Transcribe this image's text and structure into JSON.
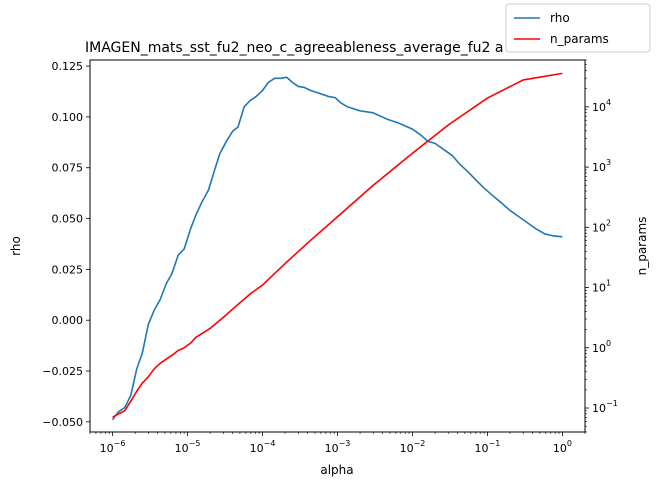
{
  "chart_data": {
    "type": "line",
    "title": "IMAGEN_mats_sst_fu2_neo_c_agreeableness_average_fu2 a",
    "xlabel": "alpha",
    "ylabel_left": "rho",
    "ylabel_right": "n_params",
    "xscale": "log",
    "xlim": [
      5e-07,
      2
    ],
    "ylim_left": [
      -0.055,
      0.128
    ],
    "ylim_right": [
      0.04,
      60000
    ],
    "yscale_right": "log",
    "x_ticks": [
      {
        "value": 1e-06,
        "base": "10",
        "exp": "−6"
      },
      {
        "value": 1e-05,
        "base": "10",
        "exp": "−5"
      },
      {
        "value": 0.0001,
        "base": "10",
        "exp": "−4"
      },
      {
        "value": 0.001,
        "base": "10",
        "exp": "−3"
      },
      {
        "value": 0.01,
        "base": "10",
        "exp": "−2"
      },
      {
        "value": 0.1,
        "base": "10",
        "exp": "−1"
      },
      {
        "value": 1,
        "base": "10",
        "exp": "0"
      }
    ],
    "y_left_ticks": [
      {
        "value": -0.05,
        "label": "−0.050"
      },
      {
        "value": -0.025,
        "label": "−0.025"
      },
      {
        "value": 0.0,
        "label": "0.000"
      },
      {
        "value": 0.025,
        "label": "0.025"
      },
      {
        "value": 0.05,
        "label": "0.050"
      },
      {
        "value": 0.075,
        "label": "0.075"
      },
      {
        "value": 0.1,
        "label": "0.100"
      },
      {
        "value": 0.125,
        "label": "0.125"
      }
    ],
    "y_right_ticks": [
      {
        "value": 0.1,
        "base": "10",
        "exp": "−1"
      },
      {
        "value": 1,
        "base": "10",
        "exp": "0"
      },
      {
        "value": 10,
        "base": "10",
        "exp": "1"
      },
      {
        "value": 100,
        "base": "10",
        "exp": "2"
      },
      {
        "value": 1000,
        "base": "10",
        "exp": "3"
      },
      {
        "value": 10000,
        "base": "10",
        "exp": "4"
      }
    ],
    "legend": {
      "placement": "top-right"
    },
    "series": [
      {
        "name": "rho",
        "axis": "left",
        "color": "#1f77b4",
        "x": [
          1e-06,
          1.2e-06,
          1.45e-06,
          1.75e-06,
          2.1e-06,
          2.5e-06,
          3e-06,
          3.6e-06,
          4.3e-06,
          5.2e-06,
          6.2e-06,
          7.5e-06,
          9e-06,
          1.1e-05,
          1.3e-05,
          1.55e-05,
          1.9e-05,
          2.3e-05,
          2.7e-05,
          3.3e-05,
          4e-05,
          4.7e-05,
          5.7e-05,
          6.8e-05,
          8.2e-05,
          0.0001,
          0.00012,
          0.000145,
          0.000175,
          0.00021,
          0.00025,
          0.0003,
          0.00036,
          0.00044,
          0.00053,
          0.00064,
          0.00077,
          0.00093,
          0.0011,
          0.00135,
          0.002,
          0.003,
          0.0045,
          0.0065,
          0.01,
          0.013,
          0.016,
          0.02,
          0.026,
          0.034,
          0.042,
          0.055,
          0.07,
          0.09,
          0.12,
          0.15,
          0.2,
          0.26,
          0.34,
          0.44,
          0.58,
          0.75,
          1.0
        ],
        "y": [
          -0.049,
          -0.045,
          -0.043,
          -0.037,
          -0.024,
          -0.016,
          -0.002,
          0.005,
          0.01,
          0.018,
          0.023,
          0.032,
          0.035,
          0.045,
          0.052,
          0.058,
          0.064,
          0.074,
          0.082,
          0.088,
          0.093,
          0.095,
          0.105,
          0.108,
          0.11,
          0.113,
          0.117,
          0.119,
          0.119,
          0.1195,
          0.117,
          0.115,
          0.1145,
          0.113,
          0.112,
          0.111,
          0.11,
          0.1095,
          0.107,
          0.105,
          0.103,
          0.102,
          0.099,
          0.097,
          0.094,
          0.091,
          0.088,
          0.087,
          0.084,
          0.081,
          0.077,
          0.073,
          0.069,
          0.065,
          0.061,
          0.058,
          0.054,
          0.051,
          0.048,
          0.045,
          0.0425,
          0.0415,
          0.041
        ]
      },
      {
        "name": "n_params",
        "axis": "right",
        "color": "#ff0000",
        "x": [
          1e-06,
          1.2e-06,
          1.45e-06,
          1.75e-06,
          2.1e-06,
          2.5e-06,
          3e-06,
          3.6e-06,
          4.3e-06,
          5.2e-06,
          6.2e-06,
          7.5e-06,
          9e-06,
          1.1e-05,
          1.3e-05,
          2e-05,
          3e-05,
          4.5e-05,
          7e-05,
          0.0001,
          0.0002,
          0.0004,
          0.001,
          0.003,
          0.01,
          0.03,
          0.1,
          0.3,
          1.0
        ],
        "y": [
          0.07,
          0.08,
          0.09,
          0.13,
          0.19,
          0.26,
          0.33,
          0.45,
          0.55,
          0.65,
          0.75,
          0.9,
          1.0,
          1.2,
          1.5,
          2.1,
          3.2,
          5.0,
          8.0,
          11.0,
          25,
          55,
          150,
          500,
          1700,
          5000,
          14000,
          28000,
          36000
        ]
      }
    ]
  }
}
